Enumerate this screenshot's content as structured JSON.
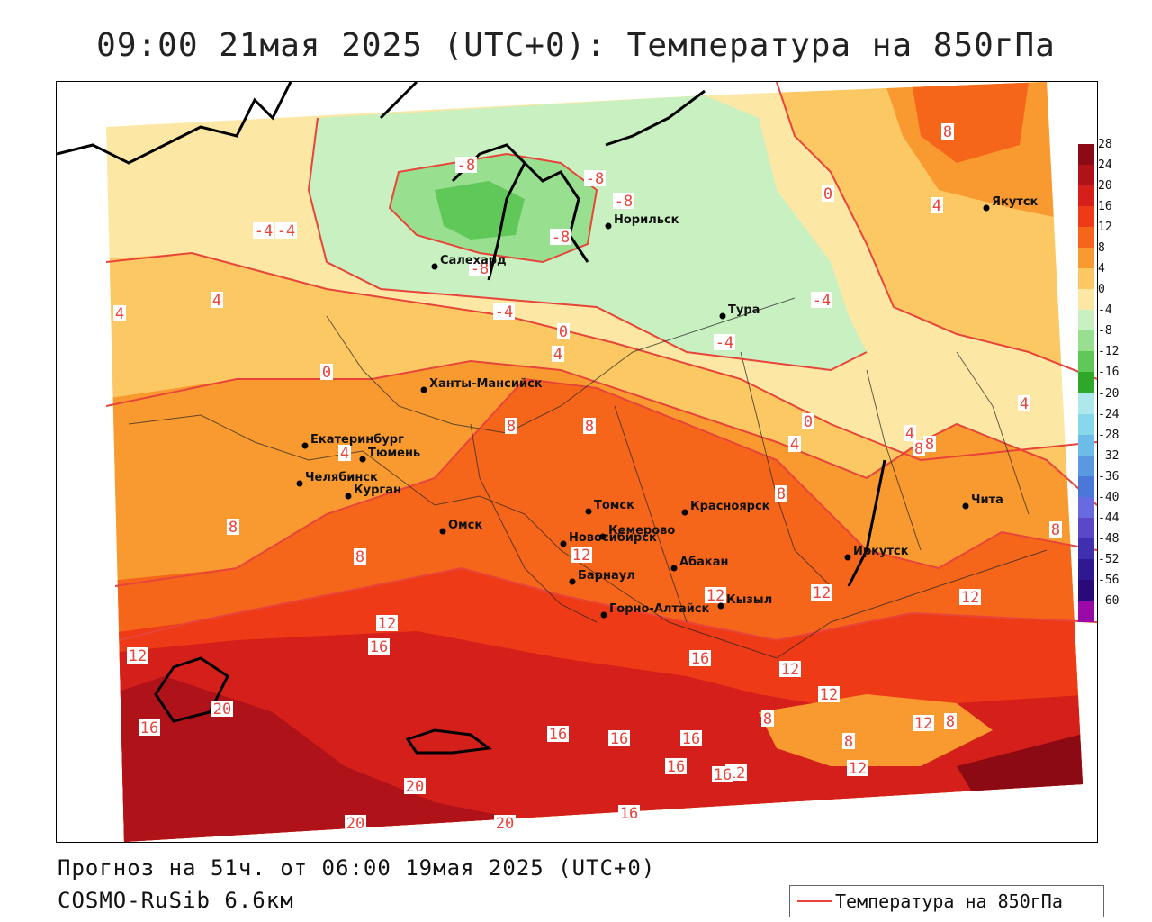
{
  "title": "09:00 21мая 2025 (UTC+0): Температура на 850гПа",
  "footer": {
    "forecast": "Прогноз на 51ч. от 06:00 19мая 2025 (UTC+0)",
    "model": "COSMO-RuSib 6.6км"
  },
  "legend": {
    "label": "Температура на 850гПа",
    "line_color": "#e8443a"
  },
  "colorbar": {
    "labels": [
      "28",
      "24",
      "20",
      "16",
      "12",
      "8",
      "4",
      "0",
      "-4",
      "-8",
      "-12",
      "-16",
      "-20",
      "-24",
      "-28",
      "-32",
      "-36",
      "-40",
      "-44",
      "-48",
      "-52",
      "-56",
      "-60"
    ],
    "colors": [
      "#8b0a14",
      "#b0121a",
      "#d41f1a",
      "#ee3a16",
      "#f6661a",
      "#f89a30",
      "#fbc864",
      "#fde7a4",
      "#c8f0c0",
      "#98e090",
      "#60c858",
      "#2ea828",
      "#aee8ec",
      "#88d8ec",
      "#6cbcea",
      "#5a98e0",
      "#4a78d8",
      "#6a6ae0",
      "#5a48c8",
      "#4030b0",
      "#301890",
      "#2a0a78",
      "#9a0aa8"
    ]
  },
  "cities": [
    {
      "name": "Якутск"
    },
    {
      "name": "Норильск"
    },
    {
      "name": "Салехард"
    },
    {
      "name": "Тура"
    },
    {
      "name": "Ханты-Мансийск"
    },
    {
      "name": "Екатеринбург"
    },
    {
      "name": "Тюмень"
    },
    {
      "name": "Челябинск"
    },
    {
      "name": "Курган"
    },
    {
      "name": "Омск"
    },
    {
      "name": "Томск"
    },
    {
      "name": "Новосибирск"
    },
    {
      "name": "Кемерово"
    },
    {
      "name": "Красноярск"
    },
    {
      "name": "Барнаул"
    },
    {
      "name": "Абакан"
    },
    {
      "name": "Горно-Алтайск"
    },
    {
      "name": "Кызыл"
    },
    {
      "name": "Иркутск"
    },
    {
      "name": "Чита"
    }
  ],
  "contour_labels": [
    "-8",
    "-8",
    "-8",
    "-8",
    "-8",
    "-4",
    "-4",
    "-4",
    "-4",
    "-4",
    "0",
    "0",
    "0",
    "0",
    "4",
    "4",
    "4",
    "4",
    "4",
    "4",
    "4",
    "4",
    "4",
    "8",
    "8",
    "8",
    "8",
    "8",
    "8",
    "8",
    "8",
    "8",
    "8",
    "8",
    "8",
    "12",
    "12",
    "12",
    "12",
    "12",
    "12",
    "12",
    "12",
    "12",
    "12",
    "12",
    "16",
    "16",
    "16",
    "16",
    "16",
    "16",
    "16",
    "16",
    "16",
    "20",
    "20",
    "20",
    "20"
  ]
}
